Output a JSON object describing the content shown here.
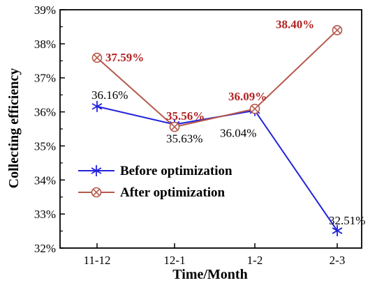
{
  "chart_data": {
    "type": "line",
    "xlabel": "Time/Month",
    "ylabel": "Collecting efficiency",
    "categories": [
      "11-12",
      "12-1",
      "1-2",
      "2-3"
    ],
    "ylim": [
      32,
      39
    ],
    "yticks": [
      32,
      33,
      34,
      35,
      36,
      37,
      38,
      39
    ],
    "ytick_labels": [
      "32%",
      "33%",
      "34%",
      "35%",
      "36%",
      "37%",
      "38%",
      "39%"
    ],
    "legend_position": "lower-left",
    "grid": false,
    "series": [
      {
        "name": "Before optimization",
        "color": "#2222dd",
        "marker": "asterisk-icon",
        "values": [
          36.16,
          35.63,
          36.04,
          32.51
        ],
        "labels": [
          "36.16%",
          "35.63%",
          "36.04%",
          "32.51%"
        ],
        "label_color": "#000000"
      },
      {
        "name": "After optimization",
        "color": "#b5584a",
        "marker": "crossed-circle-icon",
        "values": [
          37.59,
          35.56,
          36.09,
          38.4
        ],
        "labels": [
          "37.59%",
          "35.56%",
          "36.09%",
          "38.40%"
        ],
        "label_color": "#b22222"
      }
    ]
  }
}
